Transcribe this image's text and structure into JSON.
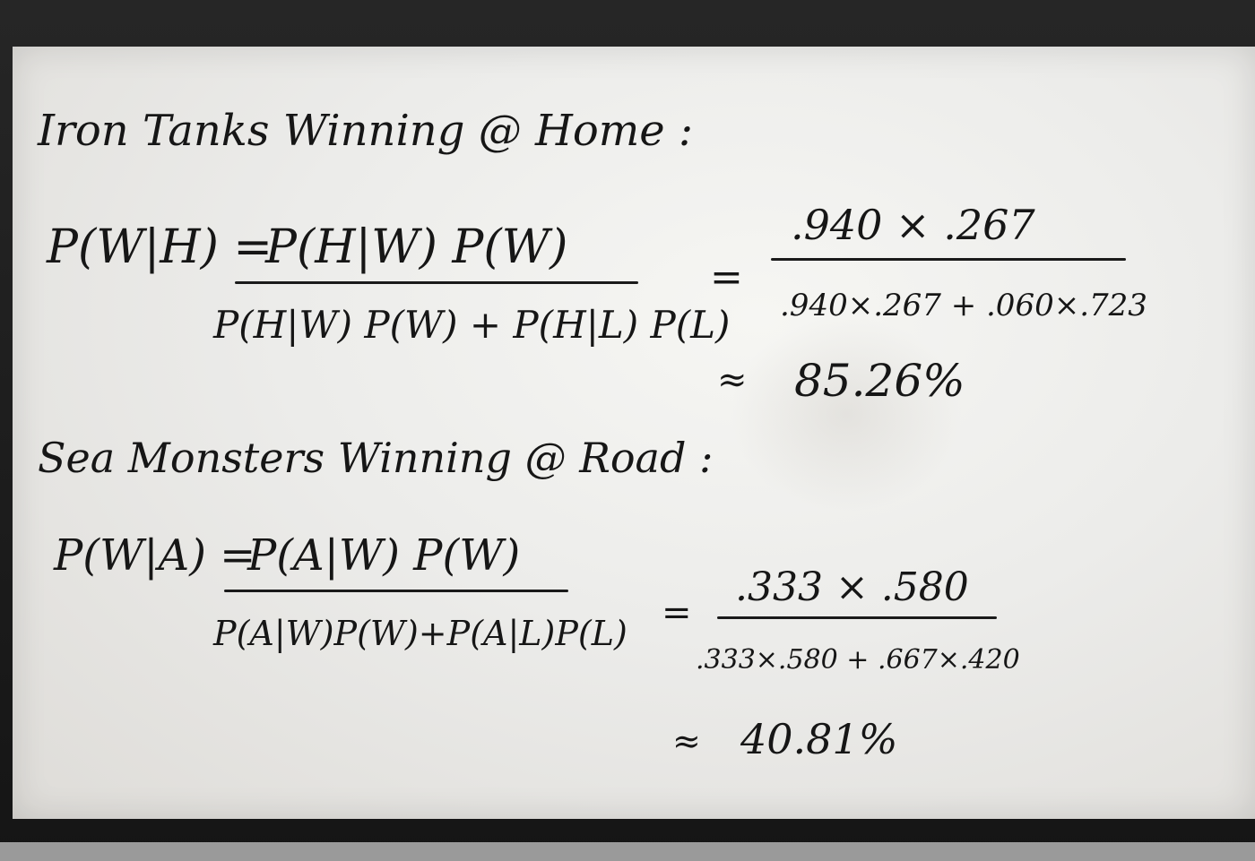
{
  "iron_tanks": {
    "heading": "Iron Tanks  Winning @ Home :",
    "formula_lhs": "P(W|H) =",
    "formula_num": "P(H|W) P(W)",
    "formula_den": "P(H|W) P(W) + P(H|L) P(L)",
    "equals": "=",
    "calc_num": ".940 × .267",
    "calc_den": ".940×.267 + .060×.723",
    "approx": "≈",
    "result": "85.26%"
  },
  "sea_monsters": {
    "heading": "Sea Monsters Winning @ Road :",
    "formula_lhs": "P(W|A) =",
    "formula_num": "P(A|W) P(W)",
    "formula_den": "P(A|W)P(W)+P(A|L)P(L)",
    "equals": "=",
    "calc_num": ".333 × .580",
    "calc_den": ".333×.580 + .667×.420",
    "approx": "≈",
    "result": "40.81%"
  }
}
